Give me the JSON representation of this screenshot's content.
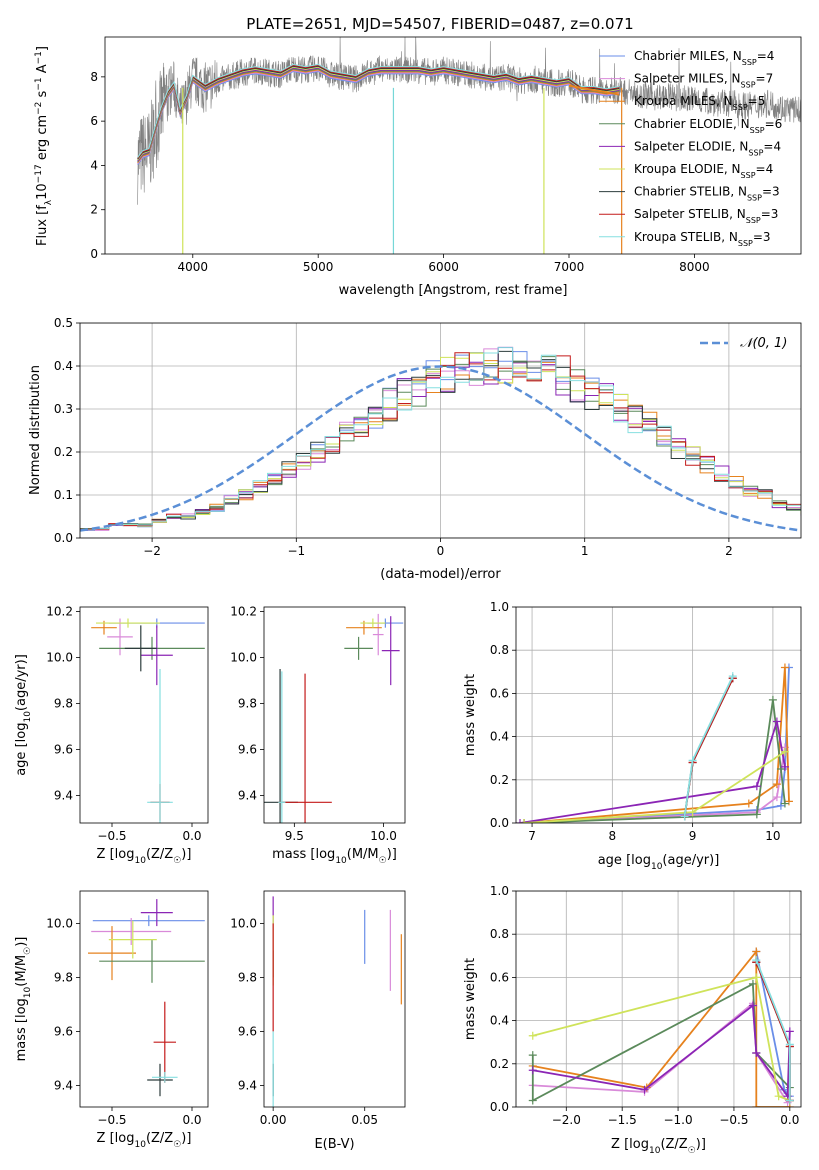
{
  "figure": {
    "title": "PLATE=2651, MJD=54507, FIBERID=0487, z=0.071"
  },
  "legend_entries": [
    {
      "name": "Chabrier MILES",
      "n": "4",
      "color": "#6a8ee8"
    },
    {
      "name": "Salpeter MILES",
      "n": "7",
      "color": "#d98ad9"
    },
    {
      "name": "Kroupa MILES",
      "n": "5",
      "color": "#e6821e"
    },
    {
      "name": "Chabrier ELODIE",
      "n": "6",
      "color": "#5b8a5b"
    },
    {
      "name": "Salpeter ELODIE",
      "n": "4",
      "color": "#8b25b5"
    },
    {
      "name": "Kroupa ELODIE",
      "n": "4",
      "color": "#cfe35a"
    },
    {
      "name": "Chabrier STELIB",
      "n": "3",
      "color": "#2d3d3d"
    },
    {
      "name": "Salpeter STELIB",
      "n": "3",
      "color": "#c41a1a"
    },
    {
      "name": "Kroupa STELIB",
      "n": "3",
      "color": "#86dfe0"
    }
  ],
  "chart_data": [
    {
      "id": "spectrum",
      "type": "line",
      "title": "PLATE=2651, MJD=54507, FIBERID=0487, z=0.071",
      "xlabel": "wavelength [Angstrom, rest frame]",
      "ylabel": "Flux [f_λ 10^-17 erg cm^-2 s^-1 A^-1]",
      "xlim": [
        3300,
        8850
      ],
      "ylim": [
        0,
        9.8
      ],
      "xticks": [
        "4000",
        "5000",
        "6000",
        "7000",
        "8000"
      ],
      "yticks": [
        "0",
        "2",
        "4",
        "6",
        "8"
      ],
      "data_color": "#808080",
      "model_color": "#76d7d7",
      "model_x": [
        3560,
        3600,
        3650,
        3700,
        3750,
        3800,
        3850,
        3900,
        3950,
        4000,
        4100,
        4200,
        4300,
        4400,
        4500,
        4600,
        4700,
        4800,
        4900,
        5000,
        5100,
        5200,
        5300,
        5400,
        5500,
        5600,
        5700,
        5800,
        5900,
        6000,
        6100,
        6200,
        6300,
        6400,
        6500,
        6600,
        6700,
        6800,
        6900,
        7000,
        7100,
        7200,
        7300,
        7400,
        7500,
        7600,
        7700,
        7800,
        7900,
        8000,
        8100,
        8200,
        8300,
        8400,
        8500,
        8600,
        8700,
        8800
      ],
      "model_y": [
        4.2,
        4.5,
        4.6,
        5.6,
        6.5,
        7.2,
        7.6,
        6.4,
        7.0,
        7.9,
        7.5,
        7.8,
        8.0,
        8.2,
        8.3,
        8.2,
        8.1,
        8.4,
        8.3,
        8.4,
        8.1,
        8.0,
        7.9,
        8.2,
        8.3,
        8.3,
        8.3,
        8.3,
        8.2,
        8.3,
        8.2,
        8.1,
        8.0,
        7.9,
        8.0,
        7.8,
        7.9,
        7.8,
        7.7,
        7.8,
        7.4,
        7.4,
        7.3,
        7.4,
        7.3,
        7.2,
        7.1,
        7.1,
        7.0,
        7.0,
        6.9,
        6.8,
        6.8,
        6.7,
        6.7,
        6.8,
        6.6,
        6.5
      ],
      "model_end_x": 7420
    },
    {
      "id": "residuals",
      "type": "line",
      "xlabel": "(data-model)/error",
      "ylabel": "Normed distribution",
      "xlim": [
        -2.5,
        2.5
      ],
      "ylim": [
        0,
        0.5
      ],
      "xticks": [
        "−2",
        "−1",
        "0",
        "1",
        "2"
      ],
      "yticks": [
        "0.0",
        "0.1",
        "0.2",
        "0.3",
        "0.4",
        "0.5"
      ],
      "grid": true,
      "legend": {
        "label": "𝒩(0, 1)",
        "color": "#5b8fd6",
        "position": "top-right"
      },
      "bin_width": 0.1,
      "bin_start": -2.5,
      "base_histogram": [
        0.02,
        0.02,
        0.03,
        0.03,
        0.03,
        0.04,
        0.05,
        0.05,
        0.06,
        0.07,
        0.09,
        0.1,
        0.12,
        0.14,
        0.16,
        0.18,
        0.2,
        0.22,
        0.24,
        0.27,
        0.29,
        0.31,
        0.33,
        0.35,
        0.37,
        0.38,
        0.39,
        0.4,
        0.4,
        0.4,
        0.4,
        0.4,
        0.39,
        0.38,
        0.36,
        0.34,
        0.32,
        0.3,
        0.28,
        0.26,
        0.24,
        0.21,
        0.19,
        0.17,
        0.15,
        0.13,
        0.11,
        0.1,
        0.08,
        0.07,
        0.06,
        0.05,
        0.04,
        0.04,
        0.03,
        0.03,
        0.03,
        0.02,
        0.02,
        0.02
      ]
    },
    {
      "id": "age-vs-z",
      "type": "scatter",
      "xlabel": "Z [log10(Z/Z☉)]",
      "ylabel": "age [log10(age/yr)]",
      "xlim": [
        -0.7,
        0.1
      ],
      "ylim": [
        9.28,
        10.22
      ],
      "xticks": [
        "−0.5",
        "0.0"
      ],
      "yticks": [
        "9.4",
        "9.6",
        "9.8",
        "10.0",
        "10.2"
      ],
      "points": [
        {
          "x": -0.22,
          "xerr": 0.3,
          "y": 10.15,
          "yerr": 0.02,
          "series": 0
        },
        {
          "x": -0.45,
          "xerr": 0.08,
          "y": 10.09,
          "yerr": 0.08,
          "series": 1
        },
        {
          "x": -0.55,
          "xerr": 0.08,
          "y": 10.13,
          "yerr": 0.03,
          "series": 2
        },
        {
          "x": -0.25,
          "xerr": 0.33,
          "y": 10.04,
          "yerr": 0.05,
          "series": 3
        },
        {
          "x": -0.22,
          "xerr": 0.1,
          "y": 10.01,
          "yerr": 0.13,
          "series": 4
        },
        {
          "x": -0.4,
          "xerr": 0.2,
          "y": 10.15,
          "yerr": 0.02,
          "series": 5
        },
        {
          "x": -0.32,
          "xerr": 0.1,
          "y": 10.04,
          "yerr": 0.1,
          "series": 6
        },
        {
          "x": -0.2,
          "xerr": 0.06,
          "y": 9.37,
          "yerr": 0.08,
          "series": 7
        },
        {
          "x": -0.2,
          "xerr": 0.08,
          "y": 9.37,
          "yerr": 0.58,
          "series": 8
        }
      ]
    },
    {
      "id": "age-vs-mass",
      "type": "scatter",
      "xlabel": "mass [log10(M/M☉)]",
      "ylabel": "",
      "xlim": [
        9.33,
        10.12
      ],
      "ylim": [
        9.28,
        10.22
      ],
      "xticks": [
        "9.5",
        "10.0"
      ],
      "yticks": [
        "9.4",
        "9.6",
        "9.8",
        "10.0",
        "10.2"
      ],
      "points": [
        {
          "x": 10.01,
          "xerr": 0.1,
          "y": 10.15,
          "yerr": 0.02,
          "series": 0
        },
        {
          "x": 9.97,
          "xerr": 0.03,
          "y": 10.1,
          "yerr": 0.09,
          "series": 1
        },
        {
          "x": 9.89,
          "xerr": 0.1,
          "y": 10.13,
          "yerr": 0.03,
          "series": 2
        },
        {
          "x": 9.86,
          "xerr": 0.08,
          "y": 10.04,
          "yerr": 0.05,
          "series": 3
        },
        {
          "x": 10.04,
          "xerr": 0.05,
          "y": 10.03,
          "yerr": 0.15,
          "series": 4
        },
        {
          "x": 9.94,
          "xerr": 0.07,
          "y": 10.15,
          "yerr": 0.02,
          "series": 5
        },
        {
          "x": 9.42,
          "xerr": 0.1,
          "y": 9.37,
          "yerr": 0.58,
          "series": 6
        },
        {
          "x": 9.56,
          "xerr": 0.15,
          "y": 9.37,
          "yerr": 0.56,
          "series": 7
        },
        {
          "x": 9.43,
          "xerr": 0.02,
          "y": 9.37,
          "yerr": 0.57,
          "series": 8
        }
      ]
    },
    {
      "id": "weight-vs-age",
      "type": "line",
      "xlabel": "age [log10(age/yr)]",
      "ylabel": "mass weight",
      "xlim": [
        6.8,
        10.35
      ],
      "ylim": [
        0,
        1.0
      ],
      "xticks": [
        "7",
        "8",
        "9",
        "10"
      ],
      "yticks": [
        "0.0",
        "0.2",
        "0.4",
        "0.6",
        "0.8",
        "1.0"
      ],
      "grid": true,
      "series": [
        {
          "series": 0,
          "x": [
            6.9,
            9.8,
            10.1,
            10.15,
            10.2
          ],
          "y": [
            0.0,
            0.06,
            0.08,
            0.25,
            0.72
          ]
        },
        {
          "series": 1,
          "x": [
            6.9,
            9.8,
            10.05,
            10.15
          ],
          "y": [
            0.0,
            0.05,
            0.12,
            0.35
          ]
        },
        {
          "series": 2,
          "x": [
            6.9,
            9.7,
            10.05,
            10.15,
            10.2
          ],
          "y": [
            0.0,
            0.09,
            0.18,
            0.72,
            0.1
          ]
        },
        {
          "series": 3,
          "x": [
            6.9,
            9.8,
            10.0,
            10.1,
            10.15
          ],
          "y": [
            0.0,
            0.04,
            0.57,
            0.25,
            0.09
          ]
        },
        {
          "series": 4,
          "x": [
            6.85,
            9.8,
            10.05,
            10.15
          ],
          "y": [
            0.0,
            0.17,
            0.47,
            0.26
          ]
        },
        {
          "series": 5,
          "x": [
            6.9,
            9.0,
            10.15
          ],
          "y": [
            0.0,
            0.05,
            0.33
          ]
        },
        {
          "series": 6,
          "x": [
            8.9,
            9.0,
            9.5
          ],
          "y": [
            0.03,
            0.28,
            0.67
          ]
        },
        {
          "series": 7,
          "x": [
            8.9,
            9.0,
            9.5
          ],
          "y": [
            0.03,
            0.28,
            0.67
          ]
        },
        {
          "series": 8,
          "x": [
            8.9,
            9.0,
            9.5
          ],
          "y": [
            0.03,
            0.29,
            0.68
          ]
        }
      ]
    },
    {
      "id": "mass-vs-z",
      "type": "scatter",
      "xlabel": "Z [log10(Z/Z☉)]",
      "ylabel": "mass [log10(M/M☉)]",
      "xlim": [
        -0.7,
        0.1
      ],
      "ylim": [
        9.32,
        10.12
      ],
      "xticks": [
        "−0.5",
        "0.0"
      ],
      "yticks": [
        "9.4",
        "9.6",
        "9.8",
        "10.0"
      ],
      "points": [
        {
          "x": -0.27,
          "xerr": 0.35,
          "y": 10.01,
          "yerr": 0.02,
          "series": 0
        },
        {
          "x": -0.38,
          "xerr": 0.25,
          "y": 9.97,
          "yerr": 0.05,
          "series": 1
        },
        {
          "x": -0.5,
          "xerr": 0.15,
          "y": 9.89,
          "yerr": 0.1,
          "series": 2
        },
        {
          "x": -0.25,
          "xerr": 0.33,
          "y": 9.86,
          "yerr": 0.08,
          "series": 3
        },
        {
          "x": -0.22,
          "xerr": 0.1,
          "y": 10.04,
          "yerr": 0.05,
          "series": 4
        },
        {
          "x": -0.37,
          "xerr": 0.15,
          "y": 9.94,
          "yerr": 0.07,
          "series": 5
        },
        {
          "x": -0.2,
          "xerr": 0.08,
          "y": 9.42,
          "yerr": 0.06,
          "series": 6
        },
        {
          "x": -0.17,
          "xerr": 0.07,
          "y": 9.56,
          "yerr": 0.15,
          "series": 7
        },
        {
          "x": -0.17,
          "xerr": 0.08,
          "y": 9.43,
          "yerr": 0.02,
          "series": 8
        }
      ]
    },
    {
      "id": "mass-vs-ebv",
      "type": "scatter",
      "xlabel": "E(B-V)",
      "ylabel": "",
      "xlim": [
        -0.005,
        0.072
      ],
      "ylim": [
        9.32,
        10.12
      ],
      "xticks": [
        "0.00",
        "0.05"
      ],
      "yticks": [
        "9.4",
        "9.6",
        "9.8",
        "10.0"
      ],
      "points": [
        {
          "x": 0.05,
          "xerr": 0,
          "y": 9.95,
          "yerr": 0.1,
          "series": 0
        },
        {
          "x": 0.064,
          "xerr": 0,
          "y": 9.9,
          "yerr": 0.15,
          "series": 1
        },
        {
          "x": 0.07,
          "xerr": 0,
          "y": 9.83,
          "yerr": 0.13,
          "series": 2
        },
        {
          "x": 0.0,
          "xerr": 0,
          "y": 9.85,
          "yerr": 0.05,
          "series": 3
        },
        {
          "x": 0.0,
          "xerr": 0,
          "y": 10.05,
          "yerr": 0.05,
          "series": 4
        },
        {
          "x": 0.0,
          "xerr": 0,
          "y": 9.9,
          "yerr": 0.13,
          "series": 5
        },
        {
          "x": 0.0,
          "xerr": 0,
          "y": 9.42,
          "yerr": 0.06,
          "series": 6
        },
        {
          "x": 0.0,
          "xerr": 0,
          "y": 9.8,
          "yerr": 0.2,
          "series": 7
        },
        {
          "x": 0.0,
          "xerr": 0,
          "y": 9.45,
          "yerr": 0.15,
          "series": 8
        }
      ]
    },
    {
      "id": "weight-vs-z",
      "type": "line",
      "xlabel": "Z [log10(Z/Z☉)]",
      "ylabel": "mass weight",
      "xlim": [
        -2.45,
        0.1
      ],
      "ylim": [
        0,
        1.0
      ],
      "xticks": [
        "−2.0",
        "−1.5",
        "−1.0",
        "−0.5",
        "0.0"
      ],
      "yticks": [
        "0.0",
        "0.2",
        "0.4",
        "0.6",
        "0.8",
        "1.0"
      ],
      "grid": true,
      "series": [
        {
          "series": 0,
          "x": [
            -0.3,
            -0.05,
            0.0
          ],
          "y": [
            0.72,
            0.08,
            0.05
          ]
        },
        {
          "series": 1,
          "x": [
            -2.3,
            -1.3,
            -0.33,
            -0.3,
            -0.02,
            0.0
          ],
          "y": [
            0.1,
            0.07,
            0.48,
            0.25,
            0.02,
            0.03
          ]
        },
        {
          "series": 2,
          "x": [
            -2.3,
            -1.28,
            -0.3,
            -0.3,
            0.0
          ],
          "y": [
            0.19,
            0.09,
            0.72,
            0.0,
            0.0
          ]
        },
        {
          "series": 3,
          "x": [
            -2.3,
            -2.3,
            -0.33,
            -0.3,
            0.0
          ],
          "y": [
            0.24,
            0.03,
            0.57,
            0.25,
            0.09
          ]
        },
        {
          "series": 4,
          "x": [
            -2.3,
            -1.3,
            -0.33,
            -0.3,
            -0.02,
            0.0
          ],
          "y": [
            0.17,
            0.08,
            0.47,
            0.25,
            0.05,
            0.35
          ]
        },
        {
          "series": 5,
          "x": [
            -2.3,
            -0.3,
            -0.1,
            0.0
          ],
          "y": [
            0.33,
            0.6,
            0.05,
            0.03
          ]
        },
        {
          "series": 6,
          "x": [
            -0.3,
            0.0,
            0.0
          ],
          "y": [
            0.67,
            0.28,
            0.03
          ]
        },
        {
          "series": 7,
          "x": [
            -0.3,
            0.0,
            0.0
          ],
          "y": [
            0.67,
            0.28,
            0.03
          ]
        },
        {
          "series": 8,
          "x": [
            -0.3,
            0.0,
            0.0
          ],
          "y": [
            0.68,
            0.29,
            0.03
          ]
        }
      ]
    }
  ]
}
